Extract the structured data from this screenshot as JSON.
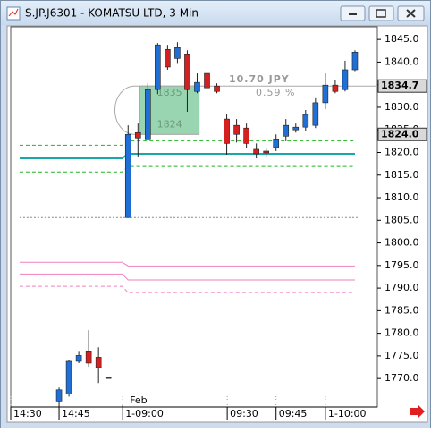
{
  "chart_data": {
    "type": "candlestick",
    "title": "S.JP.J6301 - KOMATSU LTD, 3 Min",
    "xlim": [
      -4.9,
      32.27
    ],
    "ylim": [
      1763.7,
      1847.8
    ],
    "xticks": [
      {
        "value": -4.9,
        "label": "14:30"
      },
      {
        "value": 0,
        "label": "14:45"
      },
      {
        "value": 6.45,
        "label": "1-09:00"
      },
      {
        "value": 17.05,
        "label": "09:30"
      },
      {
        "value": 22,
        "label": "09:45"
      },
      {
        "value": 27,
        "label": "1-10:00"
      }
    ],
    "date_marker": {
      "x": 6.45,
      "label": "Feb"
    },
    "yticks": [
      {
        "value": 1845,
        "label": "1845.0"
      },
      {
        "value": 1840,
        "label": "1840.0"
      },
      {
        "value": 1835,
        "label": "1835.0"
      },
      {
        "value": 1830,
        "label": "1830.0"
      },
      {
        "value": 1825,
        "label": "1825.0"
      },
      {
        "value": 1820,
        "label": "1820.0"
      },
      {
        "value": 1815,
        "label": "1815.0"
      },
      {
        "value": 1810,
        "label": "1810.0"
      },
      {
        "value": 1805,
        "label": "1805.0"
      },
      {
        "value": 1800,
        "label": "1800.0"
      },
      {
        "value": 1795,
        "label": "1795.0"
      },
      {
        "value": 1790,
        "label": "1790.0"
      },
      {
        "value": 1785,
        "label": "1785.0"
      },
      {
        "value": 1780,
        "label": "1780.0"
      },
      {
        "value": 1775,
        "label": "1775.0"
      },
      {
        "value": 1770,
        "label": "1770.0"
      }
    ],
    "up_color": "#1f6fd6",
    "down_color": "#d42020",
    "x": [
      0,
      1,
      2,
      3,
      4,
      5,
      7,
      8,
      9,
      10,
      11,
      12,
      13,
      14,
      15,
      16,
      17,
      18,
      19,
      20,
      21,
      22,
      23,
      24,
      25,
      26,
      27,
      28,
      29,
      30
    ],
    "open": [
      1765,
      1766.6,
      1773.8,
      1776.1,
      1774.7,
      1770.2,
      1805.6,
      1824.4,
      1823,
      1833.9,
      1842.8,
      1840.8,
      1841.8,
      1833.5,
      1837.5,
      1834.7,
      1827.4,
      1826,
      1825.4,
      1820.7,
      1820.3,
      1821.1,
      1823.6,
      1825,
      1825.6,
      1826,
      1831,
      1834.9,
      1833.9,
      1838.3
    ],
    "high": [
      1768,
      1774,
      1776.1,
      1780.7,
      1776.9,
      1770.2,
      1826,
      1826.4,
      1835.3,
      1844.2,
      1843.8,
      1844.4,
      1842.6,
      1837.5,
      1840.3,
      1835.3,
      1828.4,
      1827.4,
      1826.4,
      1822,
      1821,
      1824,
      1827.4,
      1826.4,
      1829.4,
      1832,
      1837.5,
      1836,
      1840.3,
      1842.6
    ],
    "low": [
      1763.8,
      1766,
      1773.4,
      1772.6,
      1769,
      1770.2,
      1805.6,
      1819.1,
      1823,
      1832.9,
      1838.3,
      1839.8,
      1829,
      1833.1,
      1833.9,
      1833.1,
      1819.5,
      1822.2,
      1821,
      1818.7,
      1819,
      1820.3,
      1822.5,
      1824.4,
      1824.8,
      1825.4,
      1829.6,
      1833.1,
      1833.5,
      1838
    ],
    "close": [
      1767.5,
      1773.8,
      1775.1,
      1773.4,
      1772.4,
      1770.2,
      1824,
      1823.2,
      1833.9,
      1843.8,
      1838.9,
      1843.2,
      1833.9,
      1835.5,
      1834.3,
      1833.5,
      1822,
      1824,
      1822,
      1819.7,
      1819.9,
      1823,
      1826,
      1825.6,
      1828.4,
      1831,
      1834.9,
      1833.5,
      1838.3,
      1842.2
    ],
    "overlays": [
      {
        "color": "#1aa7a7",
        "dash": "solid",
        "x": [
          -4,
          6.4,
          7,
          30
        ],
        "values": [
          1818.7,
          1818.7,
          1819.7,
          1819.7
        ]
      },
      {
        "color": "#22b422",
        "dash": "dash",
        "x": [
          -4,
          6.4,
          7,
          30
        ],
        "values": [
          1821.6,
          1821.6,
          1822.6,
          1822.6
        ]
      },
      {
        "color": "#22b422",
        "dash": "dash",
        "x": [
          -4,
          6.4,
          7,
          30
        ],
        "values": [
          1815.7,
          1815.7,
          1816.9,
          1816.9
        ]
      },
      {
        "color": "#888888",
        "dash": "dot",
        "x": [
          -4,
          30.3
        ],
        "values": [
          1805.6,
          1805.6
        ]
      },
      {
        "color": "#f080c0",
        "dash": "solid",
        "x": [
          -4,
          6.4,
          7,
          30
        ],
        "values": [
          1795.7,
          1795.7,
          1794.9,
          1794.9
        ]
      },
      {
        "color": "#f080c0",
        "dash": "solid",
        "x": [
          -4,
          6.4,
          7,
          30
        ],
        "values": [
          1793.1,
          1793.1,
          1791.8,
          1791.8
        ]
      },
      {
        "color": "#f080c0",
        "dash": "dash",
        "x": [
          -4,
          6.4,
          7,
          30
        ],
        "values": [
          1790.4,
          1790.4,
          1789,
          1789
        ]
      }
    ],
    "measure": {
      "x": [
        8.2,
        14.2
      ],
      "high": 1834.7,
      "low": 1824.0,
      "high_label": "1835",
      "low_label": "1824",
      "change": "10.70 JPY",
      "percent": "0.59 %"
    },
    "price_tags": [
      {
        "value": 1834.7,
        "label": "1834.7"
      },
      {
        "value": 1824.0,
        "label": "1824.0"
      }
    ]
  }
}
